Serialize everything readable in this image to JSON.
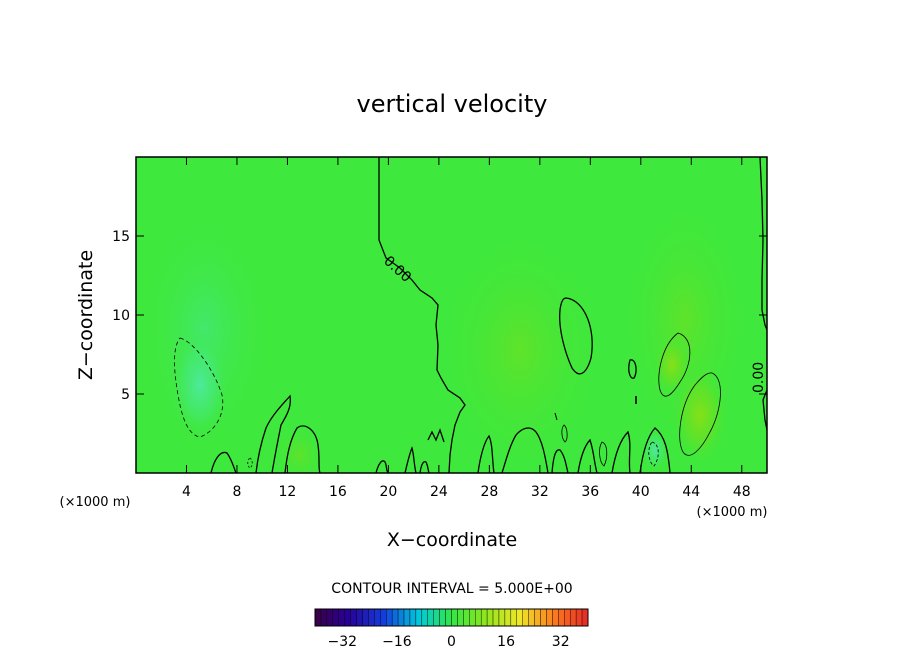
{
  "chart_data": {
    "type": "heatmap",
    "title": "vertical velocity",
    "xlabel": "X−coordinate",
    "ylabel": "Z−coordinate",
    "x_unit_left": "(×1000 m)",
    "x_unit_right": "(×1000 m)",
    "xlim": [
      0,
      50
    ],
    "ylim": [
      0,
      20
    ],
    "x_ticks": [
      4,
      8,
      12,
      16,
      20,
      24,
      28,
      32,
      36,
      40,
      44,
      48
    ],
    "y_ticks": [
      5,
      10,
      15
    ],
    "contour_label_1": "0.00",
    "contour_label_2": "0.00",
    "contour_interval_text": "CONTOUR INTERVAL = 5.000E+00",
    "colorbar": {
      "range": [
        -40,
        40
      ],
      "ticks": [
        -32,
        -16,
        0,
        16,
        32
      ],
      "tick_labels": [
        "−32",
        "−16",
        "0",
        "16",
        "32"
      ]
    },
    "field_features": [
      {
        "kind": "downdraft",
        "x": 5.5,
        "z": 5.5,
        "value": -5
      },
      {
        "kind": "updraft",
        "x": 44,
        "z": 4,
        "value": 5
      },
      {
        "kind": "updraft",
        "x": 42,
        "z": 8,
        "value": 4
      },
      {
        "kind": "downdraft",
        "x": 41,
        "z": 1,
        "value": -4
      }
    ]
  }
}
